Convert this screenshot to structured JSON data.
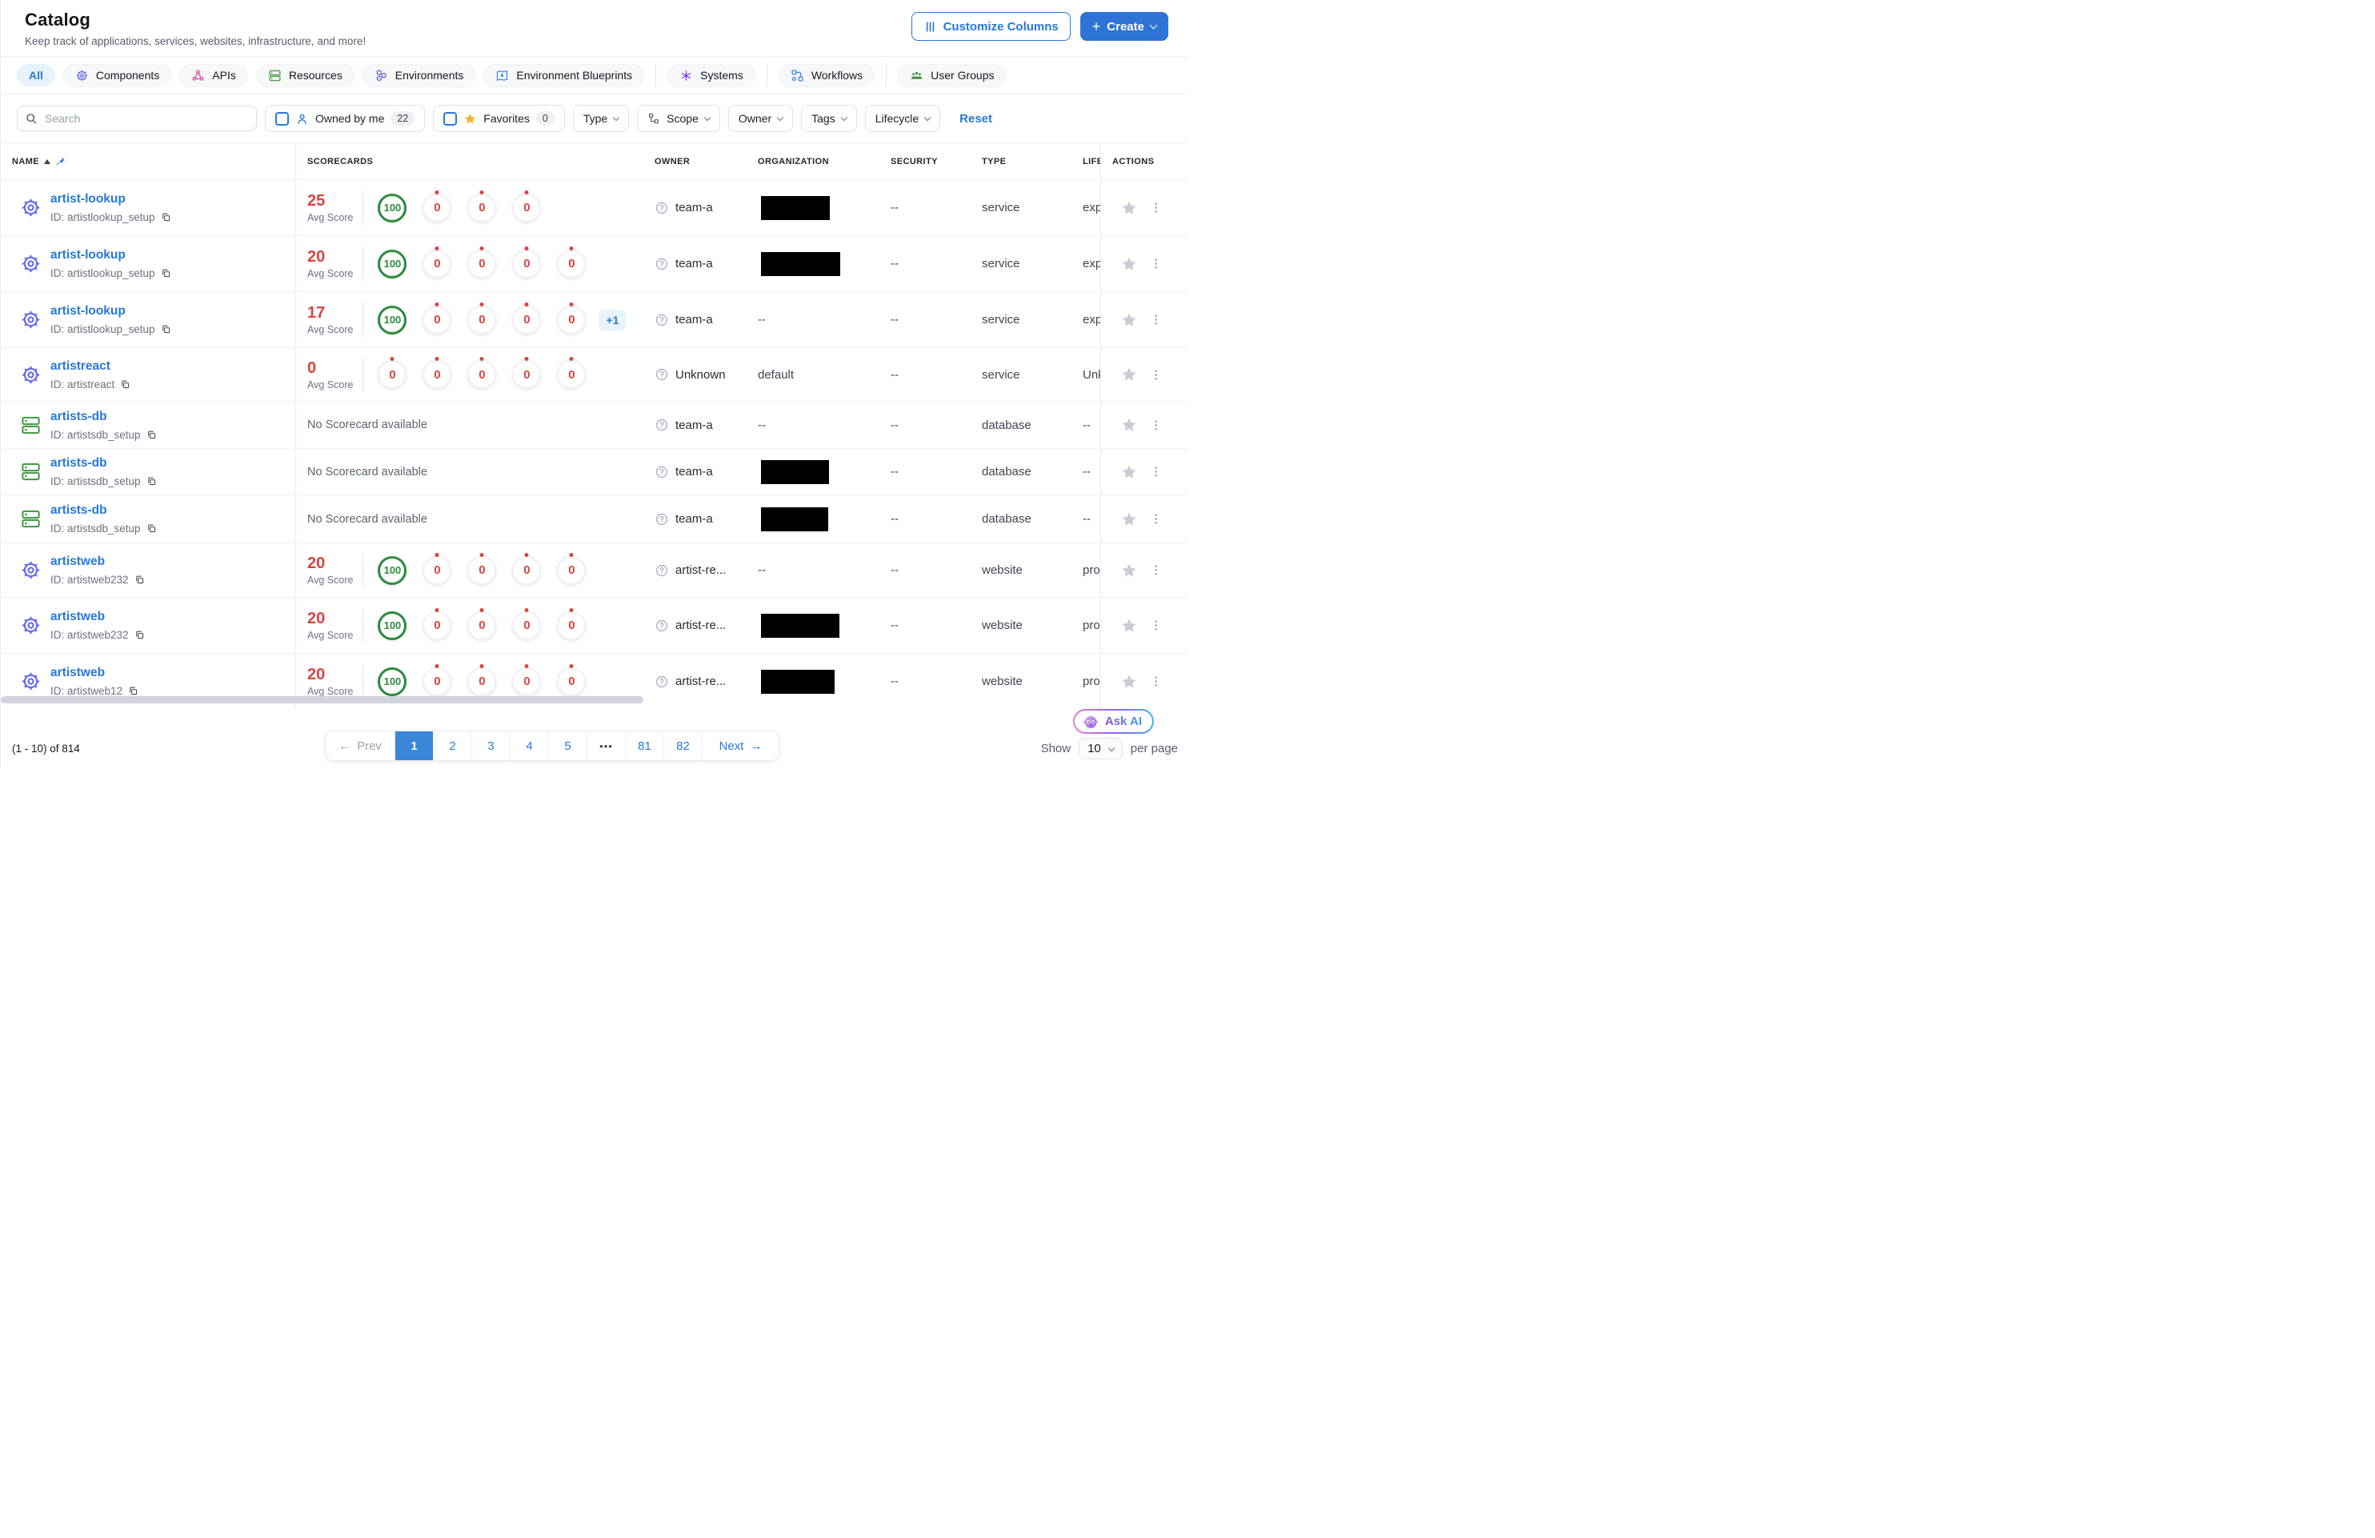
{
  "page": {
    "title": "Catalog",
    "subtitle": "Keep track of applications, services, websites, infrastructure, and more!"
  },
  "header_actions": {
    "customize_columns": "Customize Columns",
    "create": "Create"
  },
  "tabs": [
    {
      "label": "All",
      "active": true
    },
    {
      "label": "Components",
      "icon": "gear-icon",
      "color": "#6366f1"
    },
    {
      "label": "APIs",
      "icon": "api-icon",
      "color": "#ec4899"
    },
    {
      "label": "Resources",
      "icon": "database-icon",
      "color": "#4a9d4a"
    },
    {
      "label": "Environments",
      "icon": "hexagons-icon",
      "color": "#5b5bd6"
    },
    {
      "label": "Environment Blueprints",
      "icon": "blueprint-icon",
      "color": "#3b82f6",
      "divider_after": true
    },
    {
      "label": "Systems",
      "icon": "systems-icon",
      "color": "#7c3aed",
      "divider_after": true
    },
    {
      "label": "Workflows",
      "icon": "workflow-icon",
      "color": "#3b82f6",
      "divider_after": true
    },
    {
      "label": "User Groups",
      "icon": "user-groups-icon",
      "color": "#3f8f3f"
    }
  ],
  "filters": {
    "search_placeholder": "Search",
    "owned_by_me": {
      "label": "Owned by me",
      "count": "22",
      "checked": false
    },
    "favorites": {
      "label": "Favorites",
      "count": "0",
      "checked": false
    },
    "dropdowns": [
      {
        "label": "Type"
      },
      {
        "label": "Scope",
        "icon": "hierarchy-icon"
      },
      {
        "label": "Owner"
      },
      {
        "label": "Tags"
      },
      {
        "label": "Lifecycle"
      }
    ],
    "reset_label": "Reset"
  },
  "table": {
    "columns": [
      "NAME",
      "SCORECARDS",
      "OWNER",
      "ORGANIZATION",
      "SECURITY",
      "TYPE",
      "LIFEC",
      "ACTIONS"
    ],
    "avg_score_label": "Avg Score",
    "no_scorecard_text": "No Scorecard available",
    "rows": [
      {
        "name": "artist-lookup",
        "entity_id": "ID: artistlookup_setup",
        "icon": "gear-icon",
        "scorecard": {
          "avg": "25",
          "circles": [
            {
              "value": "100",
              "status": "pass"
            },
            {
              "value": "0",
              "status": "fail"
            },
            {
              "value": "0",
              "status": "fail"
            },
            {
              "value": "0",
              "status": "fail"
            }
          ]
        },
        "owner": "team-a",
        "organization": {
          "redacted": true,
          "width": 86
        },
        "security": "--",
        "type": "service",
        "lifecycle": "expe"
      },
      {
        "name": "artist-lookup",
        "entity_id": "ID: artistlookup_setup",
        "icon": "gear-icon",
        "scorecard": {
          "avg": "20",
          "circles": [
            {
              "value": "100",
              "status": "pass"
            },
            {
              "value": "0",
              "status": "fail"
            },
            {
              "value": "0",
              "status": "fail"
            },
            {
              "value": "0",
              "status": "fail"
            },
            {
              "value": "0",
              "status": "fail"
            }
          ]
        },
        "owner": "team-a",
        "organization": {
          "redacted": true,
          "width": 99
        },
        "security": "--",
        "type": "service",
        "lifecycle": "expe"
      },
      {
        "name": "artist-lookup",
        "entity_id": "ID: artistlookup_setup",
        "icon": "gear-icon",
        "scorecard": {
          "avg": "17",
          "circles": [
            {
              "value": "100",
              "status": "pass"
            },
            {
              "value": "0",
              "status": "fail"
            },
            {
              "value": "0",
              "status": "fail"
            },
            {
              "value": "0",
              "status": "fail"
            },
            {
              "value": "0",
              "status": "fail"
            }
          ],
          "overflow_badge": "+1"
        },
        "owner": "team-a",
        "organization": {
          "text": "--"
        },
        "security": "--",
        "type": "service",
        "lifecycle": "expe"
      },
      {
        "name": "artistreact",
        "entity_id": "ID: artistreact",
        "icon": "gear-icon",
        "scorecard": {
          "avg": "0",
          "circles": [
            {
              "value": "0",
              "status": "fail"
            },
            {
              "value": "0",
              "status": "fail"
            },
            {
              "value": "0",
              "status": "fail"
            },
            {
              "value": "0",
              "status": "fail"
            },
            {
              "value": "0",
              "status": "fail"
            }
          ]
        },
        "owner": "Unknown",
        "organization": {
          "text": "default"
        },
        "security": "--",
        "type": "service",
        "lifecycle": "Unkn"
      },
      {
        "name": "artists-db",
        "entity_id": "ID: artistsdb_setup",
        "icon": "database-icon",
        "scorecard": null,
        "owner": "team-a",
        "organization": {
          "text": "--"
        },
        "security": "--",
        "type": "database",
        "lifecycle": "--"
      },
      {
        "name": "artists-db",
        "entity_id": "ID: artistsdb_setup",
        "icon": "database-icon",
        "scorecard": null,
        "owner": "team-a",
        "organization": {
          "redacted": true,
          "width": 85
        },
        "security": "--",
        "type": "database",
        "lifecycle": "--"
      },
      {
        "name": "artists-db",
        "entity_id": "ID: artistsdb_setup",
        "icon": "database-icon",
        "scorecard": null,
        "owner": "team-a",
        "organization": {
          "redacted": true,
          "width": 84
        },
        "security": "--",
        "type": "database",
        "lifecycle": "--"
      },
      {
        "name": "artistweb",
        "entity_id": "ID: artistweb232",
        "icon": "gear-icon",
        "scorecard": {
          "avg": "20",
          "circles": [
            {
              "value": "100",
              "status": "pass"
            },
            {
              "value": "0",
              "status": "fail"
            },
            {
              "value": "0",
              "status": "fail"
            },
            {
              "value": "0",
              "status": "fail"
            },
            {
              "value": "0",
              "status": "fail"
            }
          ]
        },
        "owner": "artist-re...",
        "organization": {
          "text": "--"
        },
        "security": "--",
        "type": "website",
        "lifecycle": "prod"
      },
      {
        "name": "artistweb",
        "entity_id": "ID: artistweb232",
        "icon": "gear-icon",
        "scorecard": {
          "avg": "20",
          "circles": [
            {
              "value": "100",
              "status": "pass"
            },
            {
              "value": "0",
              "status": "fail"
            },
            {
              "value": "0",
              "status": "fail"
            },
            {
              "value": "0",
              "status": "fail"
            },
            {
              "value": "0",
              "status": "fail"
            }
          ]
        },
        "owner": "artist-re...",
        "organization": {
          "redacted": true,
          "width": 98
        },
        "security": "--",
        "type": "website",
        "lifecycle": "prod"
      },
      {
        "name": "artistweb",
        "entity_id": "ID: artistweb12",
        "icon": "gear-icon",
        "scorecard": {
          "avg": "20",
          "circles": [
            {
              "value": "100",
              "status": "pass"
            },
            {
              "value": "0",
              "status": "fail"
            },
            {
              "value": "0",
              "status": "fail"
            },
            {
              "value": "0",
              "status": "fail"
            },
            {
              "value": "0",
              "status": "fail"
            }
          ]
        },
        "owner": "artist-re...",
        "organization": {
          "redacted": true,
          "width": 92
        },
        "security": "--",
        "type": "website",
        "lifecycle": "prod"
      }
    ]
  },
  "pagination": {
    "prev_label": "Prev",
    "next_label": "Next",
    "pages": [
      "1",
      "2",
      "3",
      "4",
      "5",
      "•••",
      "81",
      "82"
    ],
    "active_page": "1"
  },
  "footer": {
    "range_text": "(1 - 10) of 814",
    "show_label": "Show",
    "page_size": "10",
    "per_page_label": "per page",
    "ask_ai_label": "Ask AI"
  }
}
